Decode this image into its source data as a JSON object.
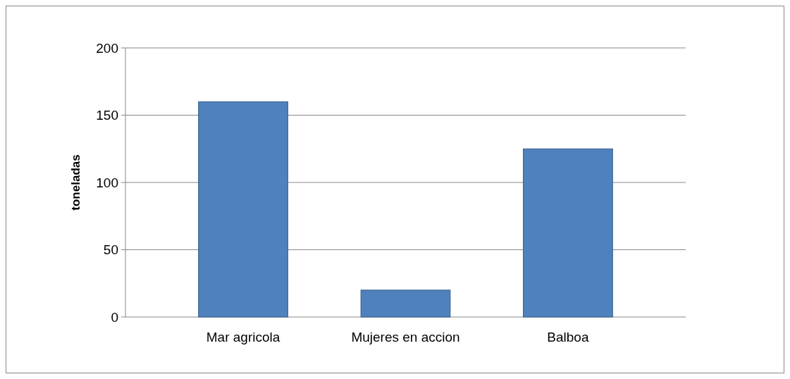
{
  "chart_data": {
    "type": "bar",
    "ylabel": "toneladas",
    "categories": [
      "Mar agricola",
      "Mujeres en accion",
      "Balboa"
    ],
    "values": [
      160,
      20,
      125
    ],
    "color": "#4f81bd",
    "ylim": [
      0,
      200
    ],
    "yticks": [
      0,
      50,
      100,
      150,
      200
    ],
    "grid": "y"
  }
}
